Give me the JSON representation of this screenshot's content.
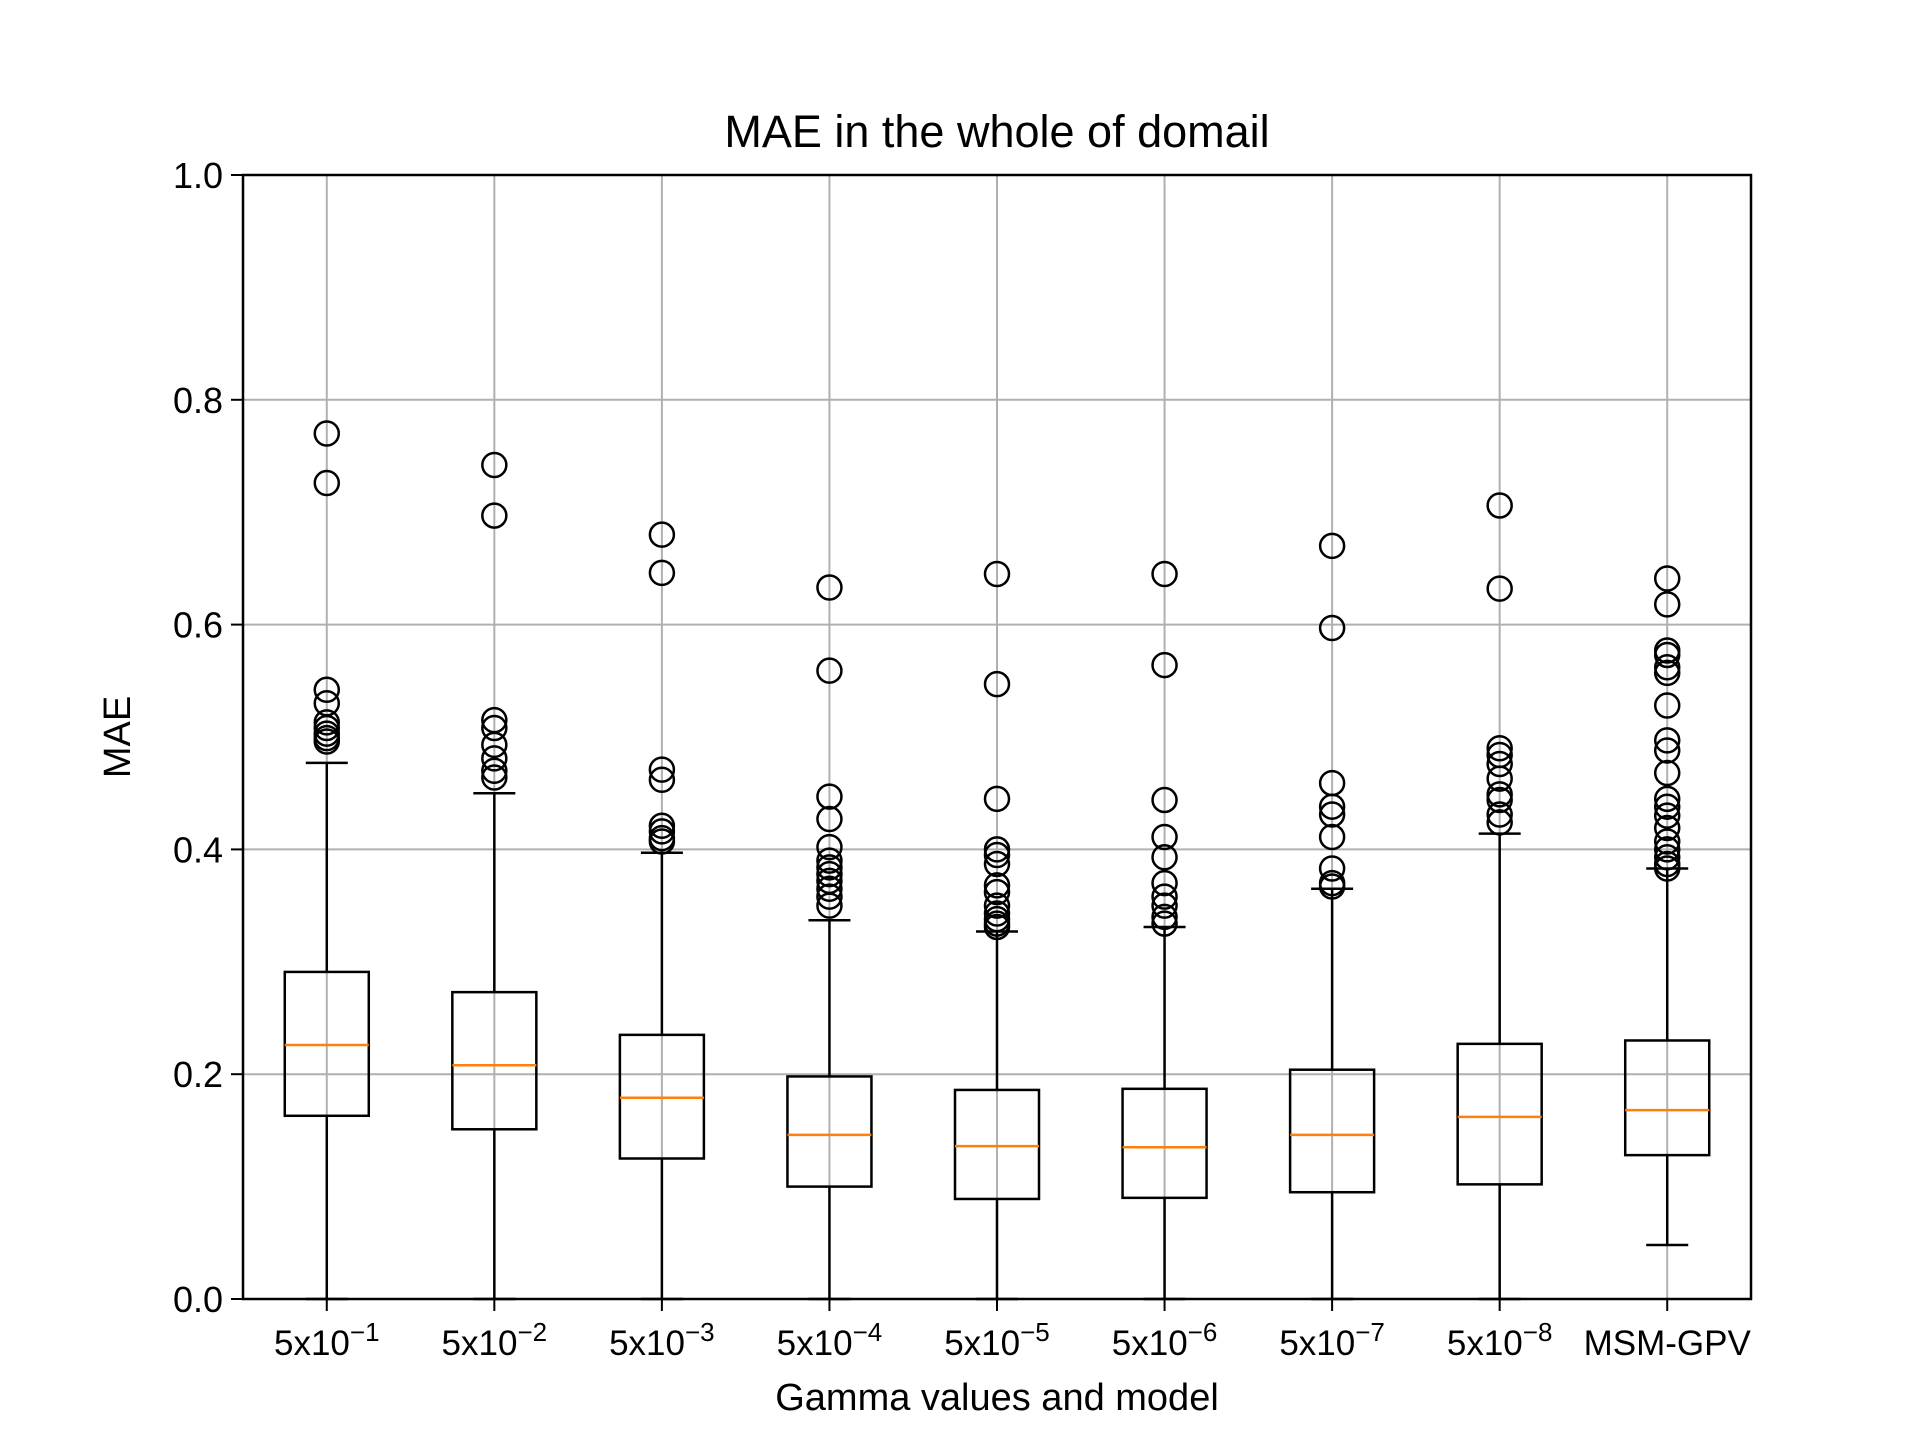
{
  "chart_data": {
    "type": "box",
    "title": "MAE in the whole of domail",
    "xlabel": "Gamma values and model",
    "ylabel": "MAE",
    "ylim": [
      0.0,
      1.0
    ],
    "yticks": [
      "0.0",
      "0.2",
      "0.4",
      "0.6",
      "0.8",
      "1.0"
    ],
    "grid": true,
    "median_color": "#ff7f0e",
    "box_color": "#000000",
    "grid_color": "#b0b0b0",
    "categories": [
      {
        "base": "5x10",
        "exp": "−1"
      },
      {
        "base": "5x10",
        "exp": "−2"
      },
      {
        "base": "5x10",
        "exp": "−3"
      },
      {
        "base": "5x10",
        "exp": "−4"
      },
      {
        "base": "5x10",
        "exp": "−5"
      },
      {
        "base": "5x10",
        "exp": "−6"
      },
      {
        "base": "5x10",
        "exp": "−7"
      },
      {
        "base": "5x10",
        "exp": "−8"
      },
      {
        "base": "MSM-GPV",
        "exp": ""
      }
    ],
    "boxes": [
      {
        "whisker_low": 0.0,
        "q1": 0.163,
        "median": 0.226,
        "q3": 0.291,
        "whisker_high": 0.477,
        "outliers": [
          0.77,
          0.726,
          0.542,
          0.53,
          0.513,
          0.508,
          0.503,
          0.499,
          0.496
        ]
      },
      {
        "whisker_low": 0.0,
        "q1": 0.151,
        "median": 0.208,
        "q3": 0.273,
        "whisker_high": 0.45,
        "outliers": [
          0.742,
          0.697,
          0.515,
          0.508,
          0.493,
          0.481,
          0.47,
          0.464
        ]
      },
      {
        "whisker_low": 0.0,
        "q1": 0.125,
        "median": 0.179,
        "q3": 0.235,
        "whisker_high": 0.397,
        "outliers": [
          0.68,
          0.646,
          0.471,
          0.462,
          0.421,
          0.416,
          0.41,
          0.407
        ]
      },
      {
        "whisker_low": 0.0,
        "q1": 0.1,
        "median": 0.146,
        "q3": 0.198,
        "whisker_high": 0.337,
        "outliers": [
          0.633,
          0.559,
          0.447,
          0.427,
          0.402,
          0.39,
          0.384,
          0.378,
          0.372,
          0.365,
          0.358,
          0.35
        ]
      },
      {
        "whisker_low": 0.0,
        "q1": 0.089,
        "median": 0.136,
        "q3": 0.186,
        "whisker_high": 0.327,
        "outliers": [
          0.645,
          0.547,
          0.445,
          0.4,
          0.395,
          0.387,
          0.368,
          0.362,
          0.35,
          0.343,
          0.338,
          0.334,
          0.331
        ]
      },
      {
        "whisker_low": 0.0,
        "q1": 0.09,
        "median": 0.135,
        "q3": 0.187,
        "whisker_high": 0.331,
        "outliers": [
          0.645,
          0.564,
          0.444,
          0.411,
          0.393,
          0.37,
          0.358,
          0.35,
          0.34,
          0.334
        ]
      },
      {
        "whisker_low": 0.0,
        "q1": 0.095,
        "median": 0.146,
        "q3": 0.204,
        "whisker_high": 0.365,
        "outliers": [
          0.67,
          0.597,
          0.459,
          0.438,
          0.431,
          0.411,
          0.383,
          0.37,
          0.367
        ]
      },
      {
        "whisker_low": 0.0,
        "q1": 0.102,
        "median": 0.162,
        "q3": 0.227,
        "whisker_high": 0.414,
        "outliers": [
          0.706,
          0.632,
          0.49,
          0.484,
          0.476,
          0.463,
          0.449,
          0.444,
          0.431,
          0.424
        ]
      },
      {
        "whisker_low": 0.048,
        "q1": 0.128,
        "median": 0.168,
        "q3": 0.23,
        "whisker_high": 0.383,
        "outliers": [
          0.641,
          0.618,
          0.577,
          0.573,
          0.562,
          0.557,
          0.528,
          0.497,
          0.488,
          0.468,
          0.445,
          0.438,
          0.43,
          0.419,
          0.407,
          0.4,
          0.393,
          0.387,
          0.383
        ]
      }
    ]
  }
}
